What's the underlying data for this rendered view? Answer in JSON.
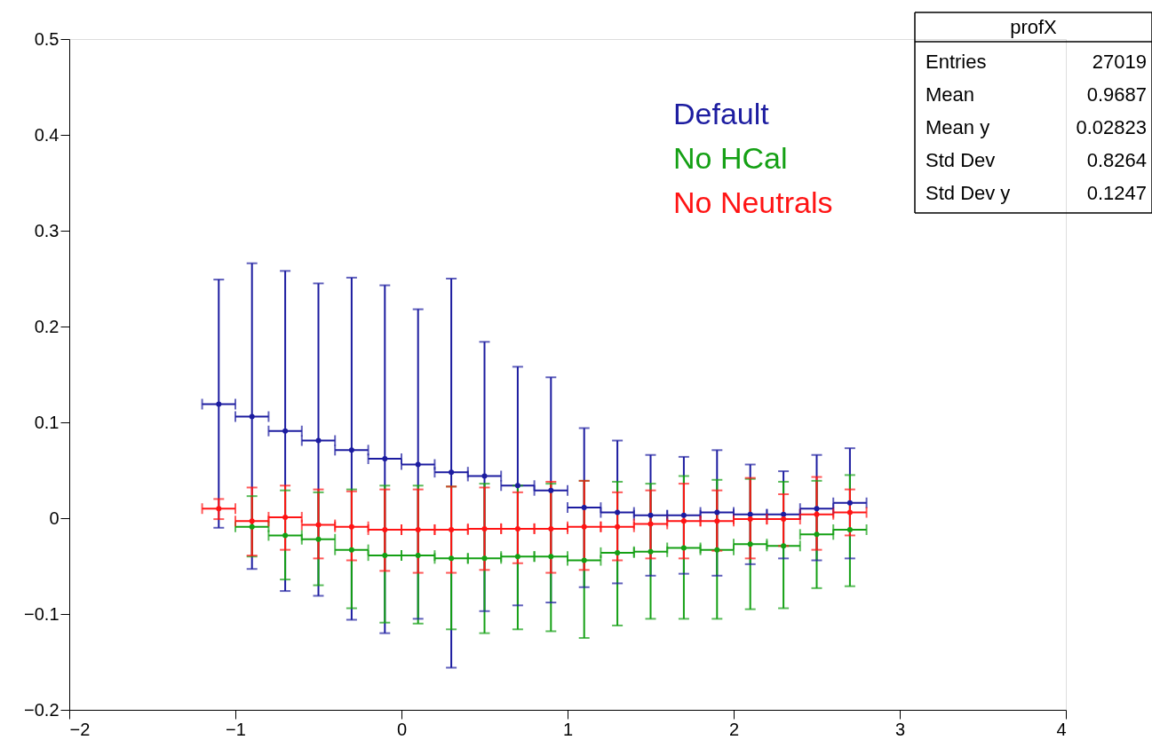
{
  "chart_data": {
    "type": "scatter",
    "x": [
      -1.1,
      -0.9,
      -0.7,
      -0.5,
      -0.3,
      -0.1,
      0.1,
      0.3,
      0.5,
      0.7,
      0.9,
      1.1,
      1.3,
      1.5,
      1.7,
      1.9,
      2.1,
      2.3,
      2.5,
      2.7
    ],
    "series": [
      {
        "name": "Default",
        "color": "#1c1ca0",
        "values": [
          0.119,
          0.106,
          0.091,
          0.081,
          0.071,
          0.062,
          0.056,
          0.048,
          0.044,
          0.034,
          0.029,
          0.011,
          0.006,
          0.003,
          0.003,
          0.006,
          0.004,
          0.004,
          0.01,
          0.016
        ],
        "xerrors": [
          0.1,
          0.1,
          0.1,
          0.1,
          0.1,
          0.1,
          0.1,
          0.1,
          0.1,
          0.1,
          0.1,
          0.1,
          0.1,
          0.1,
          0.1,
          0.1,
          0.1,
          0.1,
          0.1,
          0.1
        ],
        "errors": [
          [
            -0.01,
            0.249
          ],
          [
            -0.053,
            0.266
          ],
          [
            -0.076,
            0.258
          ],
          [
            -0.081,
            0.245
          ],
          [
            -0.106,
            0.251
          ],
          [
            -0.12,
            0.243
          ],
          [
            -0.105,
            0.218
          ],
          [
            -0.156,
            0.25
          ],
          [
            -0.097,
            0.184
          ],
          [
            -0.091,
            0.158
          ],
          [
            -0.088,
            0.147
          ],
          [
            -0.072,
            0.094
          ],
          [
            -0.068,
            0.081
          ],
          [
            -0.06,
            0.066
          ],
          [
            -0.058,
            0.064
          ],
          [
            -0.06,
            0.071
          ],
          [
            -0.048,
            0.056
          ],
          [
            -0.042,
            0.049
          ],
          [
            -0.044,
            0.066
          ],
          [
            -0.042,
            0.073
          ]
        ]
      },
      {
        "name": "No HCal",
        "color": "#14a014",
        "values": [
          null,
          -0.009,
          -0.018,
          -0.022,
          -0.033,
          -0.039,
          -0.039,
          -0.042,
          -0.042,
          -0.04,
          -0.04,
          -0.044,
          -0.036,
          -0.035,
          -0.031,
          -0.033,
          -0.027,
          -0.029,
          -0.017,
          -0.012
        ],
        "xerrors": [
          null,
          0.1,
          0.1,
          0.1,
          0.1,
          0.1,
          0.1,
          0.1,
          0.1,
          0.1,
          0.1,
          0.1,
          0.1,
          0.1,
          0.1,
          0.1,
          0.1,
          0.1,
          0.1,
          0.1
        ],
        "errors": [
          null,
          [
            -0.04,
            0.023
          ],
          [
            -0.064,
            0.029
          ],
          [
            -0.07,
            0.027
          ],
          [
            -0.094,
            0.03
          ],
          [
            -0.109,
            0.034
          ],
          [
            -0.11,
            0.034
          ],
          [
            -0.116,
            0.033
          ],
          [
            -0.12,
            0.036
          ],
          [
            -0.116,
            0.034
          ],
          [
            -0.118,
            0.036
          ],
          [
            -0.125,
            0.039
          ],
          [
            -0.112,
            0.038
          ],
          [
            -0.105,
            0.036
          ],
          [
            -0.105,
            0.044
          ],
          [
            -0.105,
            0.04
          ],
          [
            -0.095,
            0.041
          ],
          [
            -0.094,
            0.038
          ],
          [
            -0.073,
            0.039
          ],
          [
            -0.071,
            0.045
          ]
        ]
      },
      {
        "name": "No Neutrals",
        "color": "#ff1414",
        "values": [
          0.01,
          -0.003,
          0.001,
          -0.007,
          -0.009,
          -0.012,
          -0.012,
          -0.012,
          -0.011,
          -0.011,
          -0.011,
          -0.009,
          -0.009,
          -0.006,
          -0.003,
          -0.003,
          -0.001,
          -0.001,
          0.004,
          0.006
        ],
        "xerrors": [
          0.1,
          0.1,
          0.1,
          0.1,
          0.1,
          0.1,
          0.1,
          0.1,
          0.1,
          0.1,
          0.1,
          0.1,
          0.1,
          0.1,
          0.1,
          0.1,
          0.1,
          0.1,
          0.1,
          0.1
        ],
        "errors": [
          [
            -0.001,
            0.02
          ],
          [
            -0.039,
            0.032
          ],
          [
            -0.033,
            0.034
          ],
          [
            -0.042,
            0.03
          ],
          [
            -0.044,
            0.028
          ],
          [
            -0.055,
            0.03
          ],
          [
            -0.057,
            0.03
          ],
          [
            -0.057,
            0.033
          ],
          [
            -0.054,
            0.032
          ],
          [
            -0.047,
            0.027
          ],
          [
            -0.057,
            0.038
          ],
          [
            -0.054,
            0.039
          ],
          [
            -0.044,
            0.027
          ],
          [
            -0.042,
            0.029
          ],
          [
            -0.042,
            0.036
          ],
          [
            -0.034,
            0.029
          ],
          [
            -0.042,
            0.042
          ],
          [
            -0.029,
            0.025
          ],
          [
            -0.033,
            0.043
          ],
          [
            -0.018,
            0.03
          ]
        ]
      }
    ],
    "xlim": [
      -2,
      4
    ],
    "xticks": [
      -2,
      -1,
      0,
      1,
      2,
      3,
      4
    ],
    "ylim": [
      -0.2,
      0.5
    ],
    "yticks": [
      -0.2,
      -0.1,
      0,
      0.1,
      0.2,
      0.3,
      0.4,
      0.5
    ],
    "grid": false,
    "marker": "circle",
    "annotations": [
      "profX",
      "Entries 27019",
      "Mean 0.9687",
      "Mean y 0.02823",
      "Std Dev 0.8264",
      "Std Dev y 0.1247"
    ]
  }
}
